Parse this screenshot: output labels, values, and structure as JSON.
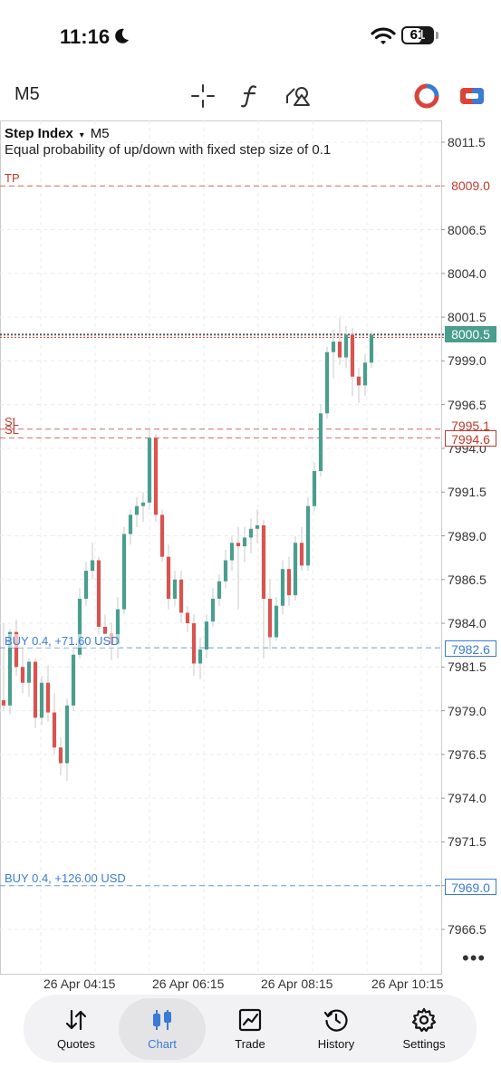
{
  "status_bar": {
    "time": "11:16",
    "battery": "61"
  },
  "toolbar": {
    "timeframe": "M5"
  },
  "chart": {
    "symbol": "Step Index",
    "timeframe": "M5",
    "description": "Equal probability of up/down with fixed step size of 0.1",
    "price_ticks": [
      "8011.5",
      "8006.5",
      "8004.0",
      "8001.5",
      "7999.0",
      "7996.5",
      "7994.0",
      "7991.5",
      "7989.0",
      "7986.5",
      "7984.0",
      "7981.5",
      "7979.0",
      "7976.5",
      "7974.0",
      "7971.5",
      "7966.5"
    ],
    "levels": {
      "tp": {
        "label": "TP",
        "price": "8009.0",
        "color": "#c0392b"
      },
      "current": {
        "price": "8000.5",
        "color": "#4a9e8e"
      },
      "sl1": {
        "label": "SL",
        "price": "7995.1",
        "color": "#c0392b"
      },
      "sl2": {
        "label": "SL",
        "price": "7994.6",
        "color": "#c0392b"
      },
      "buy1": {
        "label": "BUY 0.4, +71.60 USD",
        "price": "7982.6",
        "color": "#3a7bd5"
      },
      "buy2": {
        "label": "BUY 0.4, +126.00 USD",
        "price": "7969.0",
        "color": "#3a7bd5"
      }
    },
    "date_labels": [
      "26 Apr 04:15",
      "26 Apr 06:15",
      "26 Apr 08:15",
      "26 Apr 10:15"
    ],
    "more_icon": "ellipsis-icon"
  },
  "chart_data": {
    "type": "candlestick",
    "ylim": [
      7965.0,
      8012.5
    ],
    "up_color": "#4a9e8e",
    "down_color": "#d9534f",
    "candles": [
      {
        "o": 7979.6,
        "h": 7984.0,
        "l": 7979.0,
        "c": 7979.3
      },
      {
        "o": 7979.3,
        "h": 7983.7,
        "l": 7978.8,
        "c": 7983.5
      },
      {
        "o": 7983.5,
        "h": 7984.2,
        "l": 7981.0,
        "c": 7981.5
      },
      {
        "o": 7981.5,
        "h": 7982.8,
        "l": 7980.0,
        "c": 7980.6
      },
      {
        "o": 7980.6,
        "h": 7982.0,
        "l": 7979.8,
        "c": 7981.8
      },
      {
        "o": 7981.8,
        "h": 7982.0,
        "l": 7978.0,
        "c": 7978.6
      },
      {
        "o": 7978.6,
        "h": 7981.0,
        "l": 7978.2,
        "c": 7980.6
      },
      {
        "o": 7980.6,
        "h": 7981.6,
        "l": 7978.4,
        "c": 7978.9
      },
      {
        "o": 7978.9,
        "h": 7980.0,
        "l": 7976.5,
        "c": 7976.9
      },
      {
        "o": 7976.9,
        "h": 7977.5,
        "l": 7975.3,
        "c": 7976.0
      },
      {
        "o": 7976.0,
        "h": 7979.7,
        "l": 7975.0,
        "c": 7979.3
      },
      {
        "o": 7979.3,
        "h": 7982.6,
        "l": 7979.0,
        "c": 7982.2
      },
      {
        "o": 7982.2,
        "h": 7986.0,
        "l": 7982.0,
        "c": 7985.4
      },
      {
        "o": 7985.4,
        "h": 7987.5,
        "l": 7985.0,
        "c": 7987.0
      },
      {
        "o": 7987.0,
        "h": 7988.6,
        "l": 7986.5,
        "c": 7987.6
      },
      {
        "o": 7987.6,
        "h": 7987.8,
        "l": 7983.4,
        "c": 7983.8
      },
      {
        "o": 7983.8,
        "h": 7984.5,
        "l": 7982.8,
        "c": 7983.4
      },
      {
        "o": 7983.4,
        "h": 7984.0,
        "l": 7981.9,
        "c": 7982.8
      },
      {
        "o": 7982.8,
        "h": 7985.5,
        "l": 7982.0,
        "c": 7984.8
      },
      {
        "o": 7984.8,
        "h": 7989.5,
        "l": 7984.5,
        "c": 7989.1
      },
      {
        "o": 7989.1,
        "h": 7990.5,
        "l": 7988.5,
        "c": 7990.2
      },
      {
        "o": 7990.2,
        "h": 7991.2,
        "l": 7989.5,
        "c": 7990.7
      },
      {
        "o": 7990.7,
        "h": 7991.5,
        "l": 7989.8,
        "c": 7990.9
      },
      {
        "o": 7990.9,
        "h": 7995.2,
        "l": 7990.5,
        "c": 7994.6
      },
      {
        "o": 7994.6,
        "h": 7994.8,
        "l": 7989.8,
        "c": 7990.2
      },
      {
        "o": 7990.2,
        "h": 7990.5,
        "l": 7987.5,
        "c": 7987.8
      },
      {
        "o": 7987.8,
        "h": 7988.5,
        "l": 7984.8,
        "c": 7985.4
      },
      {
        "o": 7985.4,
        "h": 7987.0,
        "l": 7985.0,
        "c": 7986.5
      },
      {
        "o": 7986.5,
        "h": 7987.0,
        "l": 7984.0,
        "c": 7984.6
      },
      {
        "o": 7984.6,
        "h": 7985.0,
        "l": 7983.5,
        "c": 7984.0
      },
      {
        "o": 7984.0,
        "h": 7984.5,
        "l": 7981.0,
        "c": 7981.7
      },
      {
        "o": 7981.7,
        "h": 7983.2,
        "l": 7980.8,
        "c": 7982.5
      },
      {
        "o": 7982.5,
        "h": 7984.5,
        "l": 7982.0,
        "c": 7984.1
      },
      {
        "o": 7984.1,
        "h": 7986.0,
        "l": 7983.8,
        "c": 7985.4
      },
      {
        "o": 7985.4,
        "h": 7986.8,
        "l": 7985.0,
        "c": 7986.4
      },
      {
        "o": 7986.4,
        "h": 7988.2,
        "l": 7986.0,
        "c": 7987.6
      },
      {
        "o": 7987.6,
        "h": 7989.0,
        "l": 7987.0,
        "c": 7988.6
      },
      {
        "o": 7988.6,
        "h": 7989.5,
        "l": 7984.8,
        "c": 7988.4
      },
      {
        "o": 7988.4,
        "h": 7989.5,
        "l": 7987.5,
        "c": 7988.9
      },
      {
        "o": 7988.9,
        "h": 7990.0,
        "l": 7988.0,
        "c": 7989.4
      },
      {
        "o": 7989.4,
        "h": 7990.5,
        "l": 7988.6,
        "c": 7989.6
      },
      {
        "o": 7989.6,
        "h": 7989.9,
        "l": 7982.0,
        "c": 7985.4
      },
      {
        "o": 7985.4,
        "h": 7986.5,
        "l": 7982.5,
        "c": 7983.2
      },
      {
        "o": 7983.2,
        "h": 7985.5,
        "l": 7983.0,
        "c": 7985.0
      },
      {
        "o": 7985.0,
        "h": 7987.6,
        "l": 7984.5,
        "c": 7987.1
      },
      {
        "o": 7987.1,
        "h": 7987.8,
        "l": 7985.0,
        "c": 7985.6
      },
      {
        "o": 7985.6,
        "h": 7989.0,
        "l": 7985.3,
        "c": 7988.6
      },
      {
        "o": 7988.6,
        "h": 7989.5,
        "l": 7987.0,
        "c": 7987.3
      },
      {
        "o": 7987.3,
        "h": 7991.2,
        "l": 7987.0,
        "c": 7990.7
      },
      {
        "o": 7990.7,
        "h": 7993.2,
        "l": 7990.4,
        "c": 7992.7
      },
      {
        "o": 7992.7,
        "h": 7996.5,
        "l": 7992.4,
        "c": 7996.0
      },
      {
        "o": 7996.0,
        "h": 7999.8,
        "l": 7995.7,
        "c": 7999.5
      },
      {
        "o": 7999.5,
        "h": 8000.8,
        "l": 7998.0,
        "c": 8000.1
      },
      {
        "o": 8000.1,
        "h": 8001.5,
        "l": 7998.8,
        "c": 7999.2
      },
      {
        "o": 7999.2,
        "h": 8001.0,
        "l": 7998.6,
        "c": 8000.5
      },
      {
        "o": 8000.5,
        "h": 8000.9,
        "l": 7997.0,
        "c": 7998.1
      },
      {
        "o": 7998.1,
        "h": 7998.6,
        "l": 7996.6,
        "c": 7997.6
      },
      {
        "o": 7997.6,
        "h": 7999.4,
        "l": 7997.0,
        "c": 7998.9
      },
      {
        "o": 7998.9,
        "h": 8000.7,
        "l": 7998.6,
        "c": 8000.5
      }
    ]
  },
  "tabs": [
    {
      "label": "Quotes",
      "icon": "quotes-arrows-icon"
    },
    {
      "label": "Chart",
      "icon": "candlestick-icon"
    },
    {
      "label": "Trade",
      "icon": "trend-chart-icon"
    },
    {
      "label": "History",
      "icon": "history-clock-icon"
    },
    {
      "label": "Settings",
      "icon": "gear-icon"
    }
  ]
}
